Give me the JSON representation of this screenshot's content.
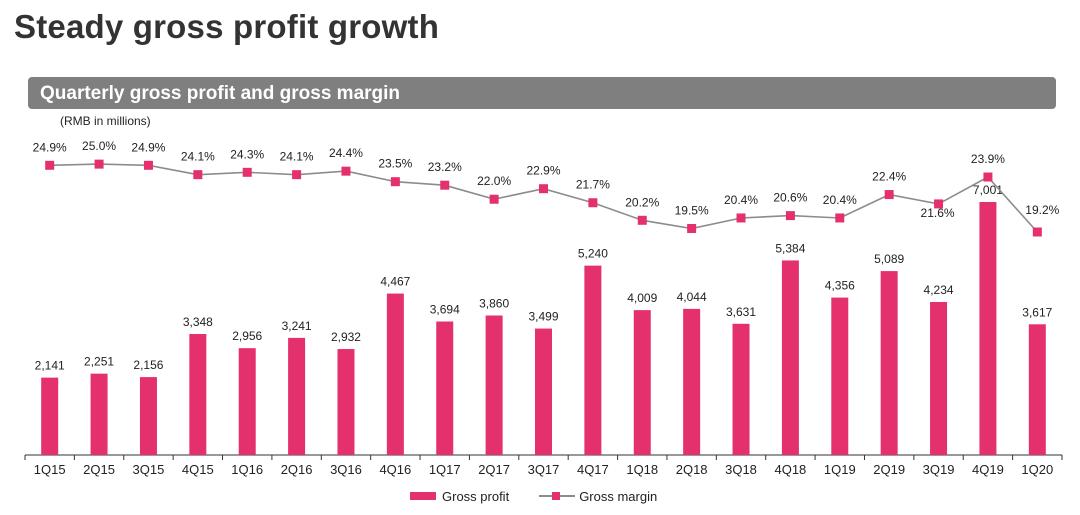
{
  "page": {
    "title": "Steady gross profit growth",
    "section_title": "Quarterly gross profit and gross margin",
    "unit_note": "(RMB in millions)"
  },
  "colors": {
    "bar": "#e5306e",
    "marker": "#e5306e",
    "line": "#8c8c8c",
    "axis": "#333333"
  },
  "legend": {
    "bar_label": "Gross profit",
    "line_label": "Gross margin"
  },
  "chart_data": {
    "type": "bar+line",
    "title": "Quarterly gross profit and gross margin",
    "ylabel": "RMB in millions",
    "categories": [
      "1Q15",
      "2Q15",
      "3Q15",
      "4Q15",
      "1Q16",
      "2Q16",
      "3Q16",
      "4Q16",
      "1Q17",
      "2Q17",
      "3Q17",
      "4Q17",
      "1Q18",
      "2Q18",
      "3Q18",
      "4Q18",
      "1Q19",
      "2Q19",
      "3Q19",
      "4Q19",
      "1Q20"
    ],
    "series": [
      {
        "name": "Gross profit",
        "type": "bar",
        "values": [
          2141,
          2251,
          2156,
          3348,
          2956,
          3241,
          2932,
          4467,
          3694,
          3860,
          3499,
          5240,
          4009,
          4044,
          3631,
          5384,
          4356,
          5089,
          4234,
          7001,
          3617
        ],
        "labels": [
          "2,141",
          "2,251",
          "2,156",
          "3,348",
          "2,956",
          "3,241",
          "2,932",
          "4,467",
          "3,694",
          "3,860",
          "3,499",
          "5,240",
          "4,009",
          "4,044",
          "3,631",
          "5,384",
          "4,356",
          "5,089",
          "4,234",
          "7,001",
          "3,617"
        ]
      },
      {
        "name": "Gross margin",
        "type": "line",
        "values": [
          24.9,
          25.0,
          24.9,
          24.1,
          24.3,
          24.1,
          24.4,
          23.5,
          23.2,
          22.0,
          22.9,
          21.7,
          20.2,
          19.5,
          20.4,
          20.6,
          20.4,
          22.4,
          21.6,
          23.9,
          19.2
        ],
        "labels": [
          "24.9%",
          "25.0%",
          "24.9%",
          "24.1%",
          "24.3%",
          "24.1%",
          "24.4%",
          "23.5%",
          "23.2%",
          "22.0%",
          "22.9%",
          "21.7%",
          "20.2%",
          "19.5%",
          "20.4%",
          "20.6%",
          "20.4%",
          "22.4%",
          "21.6%",
          "23.9%",
          "19.2%"
        ]
      }
    ],
    "legend_position": "bottom-center"
  }
}
